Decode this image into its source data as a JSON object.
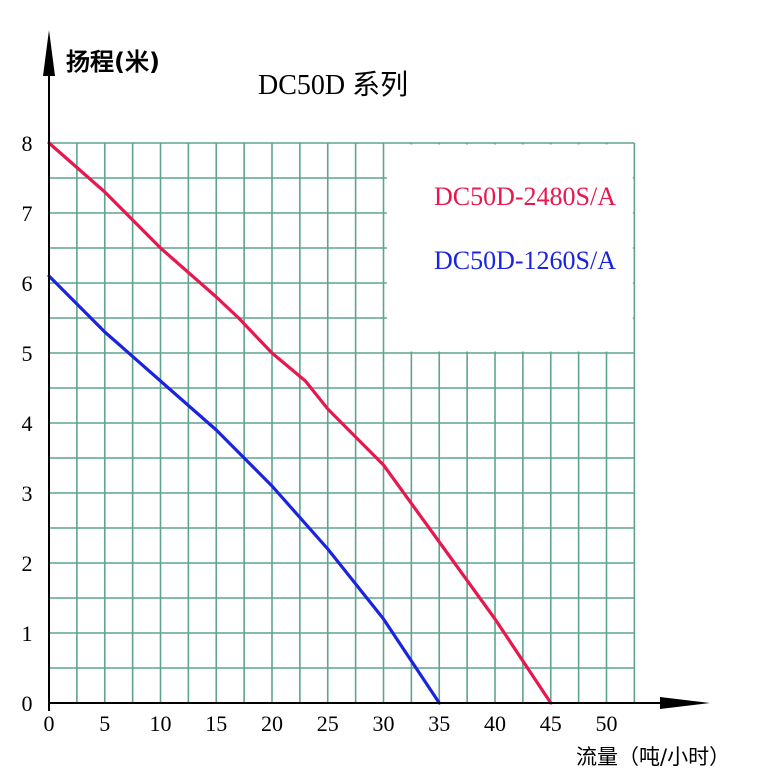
{
  "chart_data": {
    "type": "line",
    "title": "DC50D  系列",
    "xlabel": "流量（吨/小时）",
    "ylabel": "扬程(米)",
    "xlim": [
      0,
      53
    ],
    "ylim": [
      0,
      8
    ],
    "x_ticks": [
      "0",
      "5",
      "10",
      "15",
      "20",
      "25",
      "30",
      "35",
      "40",
      "45",
      "50"
    ],
    "y_ticks": [
      "0",
      "1",
      "2",
      "3",
      "4",
      "5",
      "6",
      "7",
      "8"
    ],
    "grid": true,
    "grid_color": "#5fa38f",
    "legend_position": "top-right",
    "series": [
      {
        "name": "DC50D-2480S/A",
        "color": "#e8174d",
        "x": [
          0,
          5,
          10,
          15,
          17,
          20,
          23,
          25,
          30,
          35,
          40,
          45
        ],
        "y": [
          8.0,
          7.3,
          6.5,
          5.8,
          5.5,
          5.0,
          4.6,
          4.2,
          3.4,
          2.3,
          1.2,
          0.0
        ]
      },
      {
        "name": "DC50D-1260S/A",
        "color": "#1a24e0",
        "x": [
          0,
          5,
          10,
          15,
          20,
          25,
          30,
          35
        ],
        "y": [
          6.1,
          5.3,
          4.6,
          3.9,
          3.1,
          2.2,
          1.2,
          0.0
        ]
      }
    ]
  }
}
